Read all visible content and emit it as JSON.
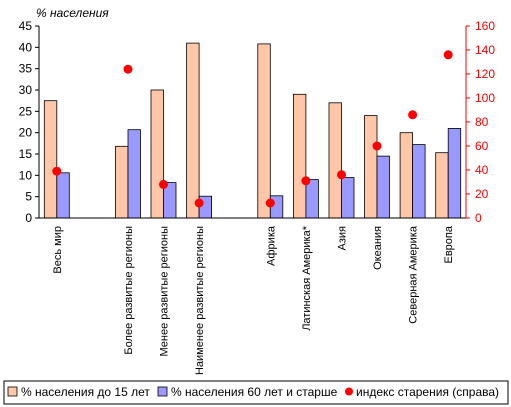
{
  "chart_data": {
    "type": "bar",
    "ylabel": "% населения",
    "ylim": [
      0,
      45
    ],
    "y2lim": [
      0,
      160
    ],
    "grid": false,
    "legend_position": "bottom",
    "categories": [
      "Весь мир",
      "",
      "Более развитые регионы",
      "Менее развитые регионы",
      "Наименее развитые регионы",
      "",
      "Африка",
      "Латинская Америка*",
      "Азия",
      "Океания",
      "Северная Америка",
      "Европа"
    ],
    "series": [
      {
        "name": "% населения до 15 лет",
        "type": "bar",
        "axis": "left",
        "color": "#FFC7A8",
        "values": [
          27.5,
          null,
          16.8,
          30,
          41,
          null,
          40.8,
          29,
          27,
          24,
          20,
          15.3
        ]
      },
      {
        "name": "% населения 60 лет и старше",
        "type": "bar",
        "axis": "left",
        "color": "#9999FF",
        "values": [
          10.6,
          null,
          20.7,
          8.3,
          5.1,
          null,
          5.2,
          9,
          9.5,
          14.5,
          17.2,
          21
        ]
      },
      {
        "name": "индекс старения (справа)",
        "type": "scatter",
        "axis": "right",
        "color": "#FF0000",
        "values": [
          39,
          null,
          124,
          28,
          12.5,
          null,
          12.5,
          31,
          36,
          60,
          86,
          136
        ]
      }
    ],
    "yticks": [
      "0",
      "5",
      "10",
      "15",
      "20",
      "25",
      "30",
      "35",
      "40",
      "45"
    ],
    "y2ticks": [
      "0",
      "20",
      "40",
      "60",
      "80",
      "100",
      "120",
      "140",
      "160"
    ]
  }
}
